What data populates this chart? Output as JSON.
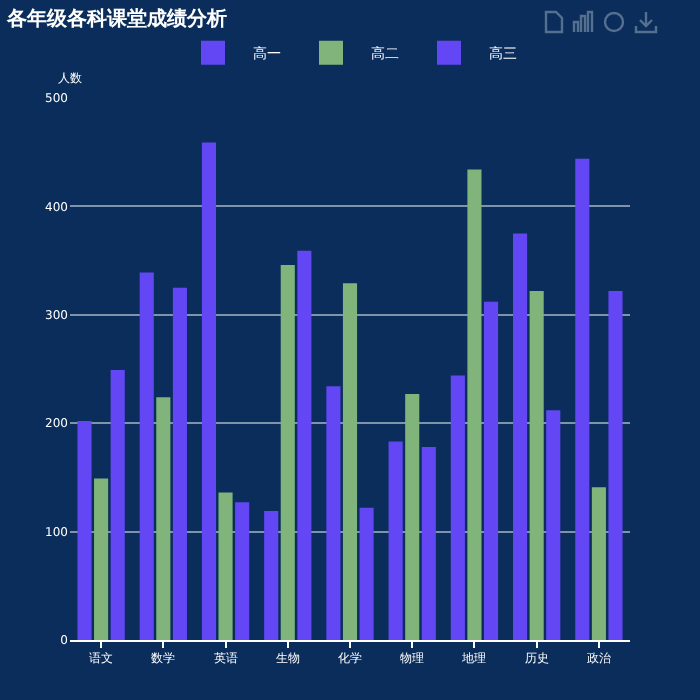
{
  "chart_data": {
    "type": "bar",
    "title": "各年级各科课堂成绩分析",
    "ylabel": "人数",
    "categories": [
      "语文",
      "数学",
      "英语",
      "生物",
      "化学",
      "物理",
      "地理",
      "历史",
      "政治"
    ],
    "series": [
      {
        "name": "高一",
        "color": "#6347f5",
        "values": [
          202,
          339,
          459,
          119,
          234,
          183,
          244,
          375,
          444
        ]
      },
      {
        "name": "高二",
        "color": "#80b47a",
        "values": [
          149,
          224,
          136,
          346,
          329,
          227,
          434,
          322,
          141
        ]
      },
      {
        "name": "高三",
        "color": "#6347f5",
        "values": [
          249,
          325,
          127,
          359,
          122,
          178,
          312,
          212,
          322
        ]
      }
    ],
    "ylim": [
      0,
      500
    ],
    "yticks": [
      0,
      100,
      200,
      300,
      400,
      500
    ],
    "grid": "y",
    "legend": "top"
  }
}
